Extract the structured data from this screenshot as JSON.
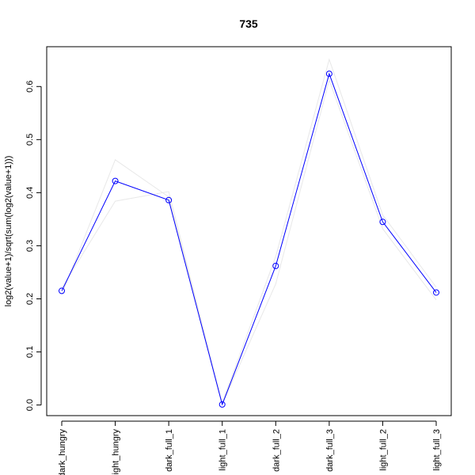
{
  "chart_data": {
    "type": "line",
    "title": "735",
    "xlabel": "",
    "ylabel": "log2(value+1)/sqrt(sum(log2(value+1)))",
    "categories": [
      "dark_hungry",
      "light_hungry",
      "dark_full_1",
      "light_full_1",
      "dark_full_2",
      "dark_full_3",
      "light_full_2",
      "light_full_3"
    ],
    "ylim": [
      -0.02,
      0.675
    ],
    "yticks": [
      0.0,
      0.1,
      0.2,
      0.3,
      0.4,
      0.5,
      0.6
    ],
    "ytick_labels": [
      "0.0",
      "0.1",
      "0.2",
      "0.3",
      "0.4",
      "0.5",
      "0.6"
    ],
    "grid": false,
    "series": [
      {
        "color": "#0000ff",
        "marker": "open-circle",
        "values": [
          0.215,
          0.422,
          0.386,
          0.001,
          0.262,
          0.624,
          0.345,
          0.212
        ]
      },
      {
        "color": "#e8e8e8",
        "marker": "none",
        "values": [
          0.208,
          0.462,
          0.392,
          0.004,
          0.28,
          0.651,
          0.358,
          0.222
        ]
      },
      {
        "color": "#e8e8e8",
        "marker": "none",
        "values": [
          0.22,
          0.384,
          0.402,
          0.002,
          0.228,
          0.612,
          0.332,
          0.198
        ]
      }
    ]
  }
}
